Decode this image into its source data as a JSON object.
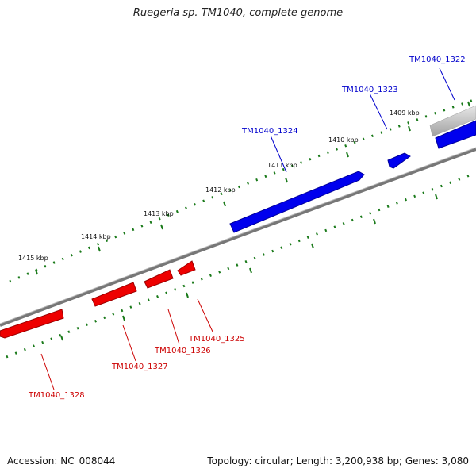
{
  "title": "Ruegeria sp. TM1040, complete genome",
  "footer": {
    "accession": "Accession: NC_008044",
    "summary": "Topology: circular; Length: 3,200,938 bp; Genes: 3,080"
  },
  "colors": {
    "forward_strand": "#0000ee",
    "reverse_strand": "#ee0000",
    "backbone": "#777777",
    "ticks": "#1a7a1a"
  },
  "kbp_labels": [
    "1409 kbp",
    "1410 kbp",
    "1411 kbp",
    "1412 kbp",
    "1413 kbp",
    "1414 kbp",
    "1415 kbp"
  ],
  "genes_forward": [
    "TM1040_1322",
    "TM1040_1323",
    "TM1040_1324"
  ],
  "genes_reverse": [
    "TM1040_1325",
    "TM1040_1326",
    "TM1040_1327",
    "TM1040_1328"
  ]
}
